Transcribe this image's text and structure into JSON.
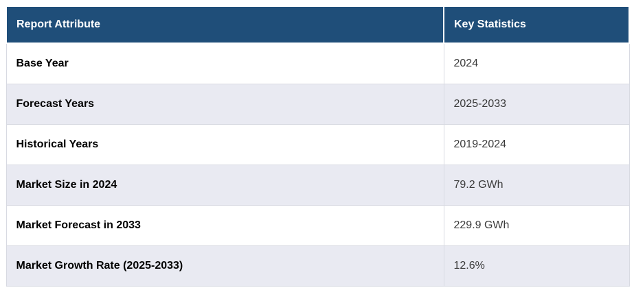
{
  "table": {
    "columns": [
      {
        "label": "Report Attribute"
      },
      {
        "label": "Key Statistics"
      }
    ],
    "rows": [
      {
        "attribute": "Base Year",
        "value": "2024"
      },
      {
        "attribute": "Forecast Years",
        "value": "2025-2033"
      },
      {
        "attribute": "Historical Years",
        "value": "2019-2024"
      },
      {
        "attribute": "Market Size in 2024",
        "value": "79.2 GWh"
      },
      {
        "attribute": "Market Forecast in 2033",
        "value": "229.9 GWh"
      },
      {
        "attribute": "Market Growth Rate (2025-2033)",
        "value": "12.6%"
      }
    ],
    "colors": {
      "header_bg": "#1F4E79",
      "header_text": "#FFFFFF",
      "row_bg": "#FFFFFF",
      "row_alt_bg": "#E9EAF2",
      "border": "#D8DAE2",
      "attribute_text": "#000000",
      "value_text": "#3A3A3A"
    }
  }
}
